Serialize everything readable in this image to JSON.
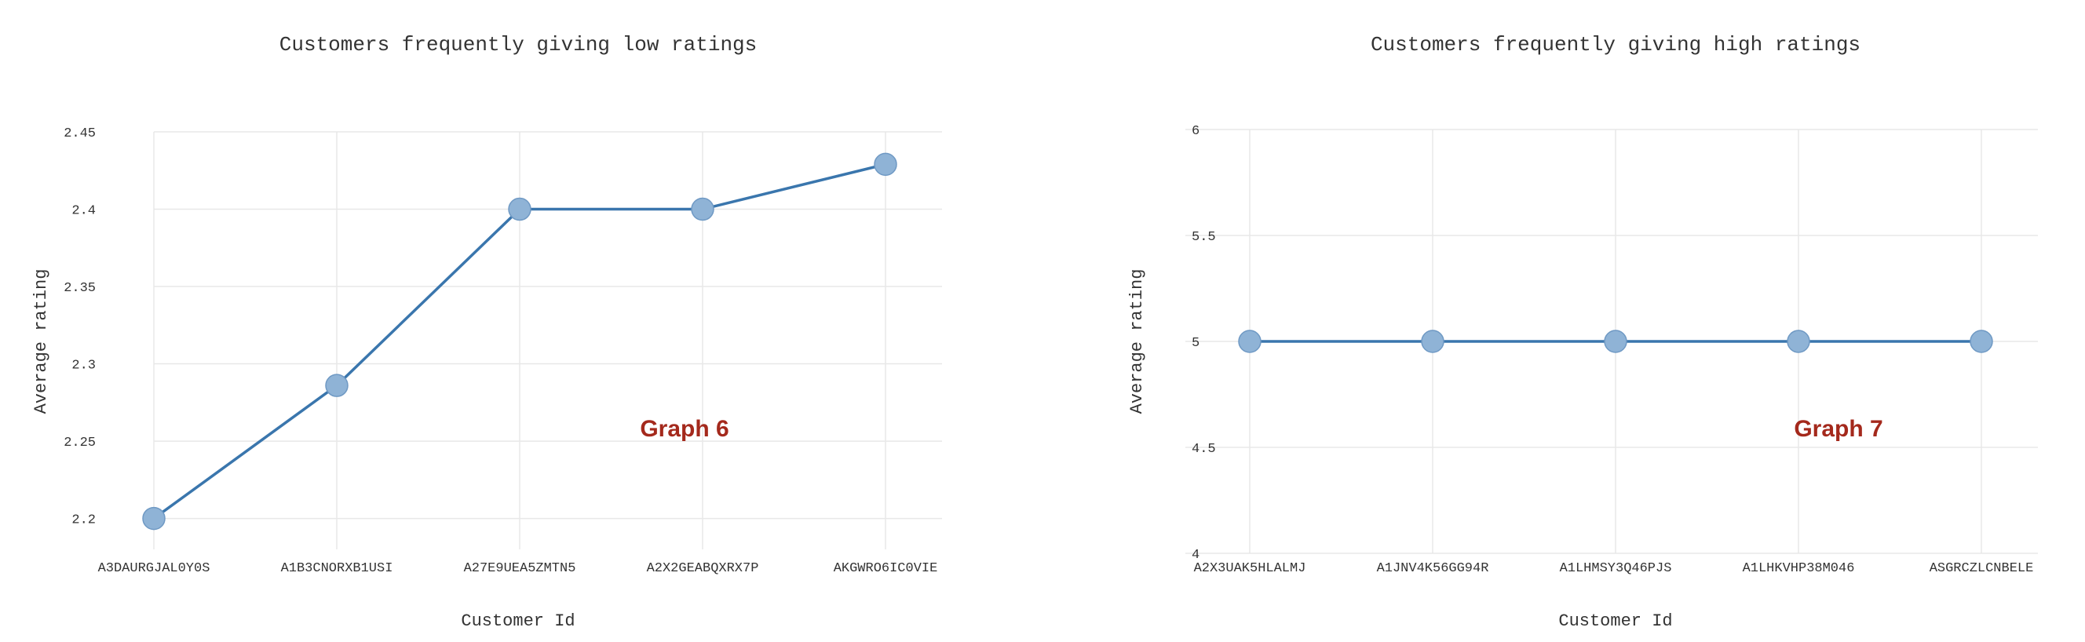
{
  "chart_data": [
    {
      "type": "line",
      "title": "Customers frequently giving low ratings",
      "xlabel": "Customer Id",
      "ylabel": "Average rating",
      "annotation": "Graph 6",
      "categories": [
        "A3DAURGJAL0Y0S",
        "A1B3CNORXB1USI",
        "A27E9UEA5ZMTN5",
        "A2X2GEABQXRX7P",
        "AKGWRO6IC0VIE"
      ],
      "values": [
        2.2,
        2.286,
        2.4,
        2.4,
        2.429
      ],
      "ylim": [
        2.18,
        2.45
      ],
      "yticks": [
        2.2,
        2.25,
        2.3,
        2.35,
        2.4,
        2.45
      ],
      "ytick_labels": [
        "2.2",
        "2.25",
        "2.3",
        "2.35",
        "2.4",
        "2.45"
      ],
      "grid": true,
      "colors": {
        "line": "#3a76ad",
        "marker": "#8fb3d6",
        "annotation": "#a4291c"
      }
    },
    {
      "type": "line",
      "title": "Customers frequently giving high ratings",
      "xlabel": "Customer Id",
      "ylabel": "Average rating",
      "annotation": "Graph 7",
      "categories": [
        "A2X3UAK5HLALMJ",
        "A1JNV4K56GG94R",
        "A1LHMSY3Q46PJS",
        "A1LHKVHP38M046",
        "ASGRCZLCNBELE"
      ],
      "values": [
        5,
        5,
        5,
        5,
        5
      ],
      "ylim": [
        4,
        6
      ],
      "yticks": [
        4,
        4.5,
        5,
        5.5,
        6
      ],
      "ytick_labels": [
        "4",
        "4.5",
        "5",
        "5.5",
        "6"
      ],
      "grid": true,
      "colors": {
        "line": "#3a76ad",
        "marker": "#8fb3d6",
        "annotation": "#a4291c"
      }
    }
  ]
}
